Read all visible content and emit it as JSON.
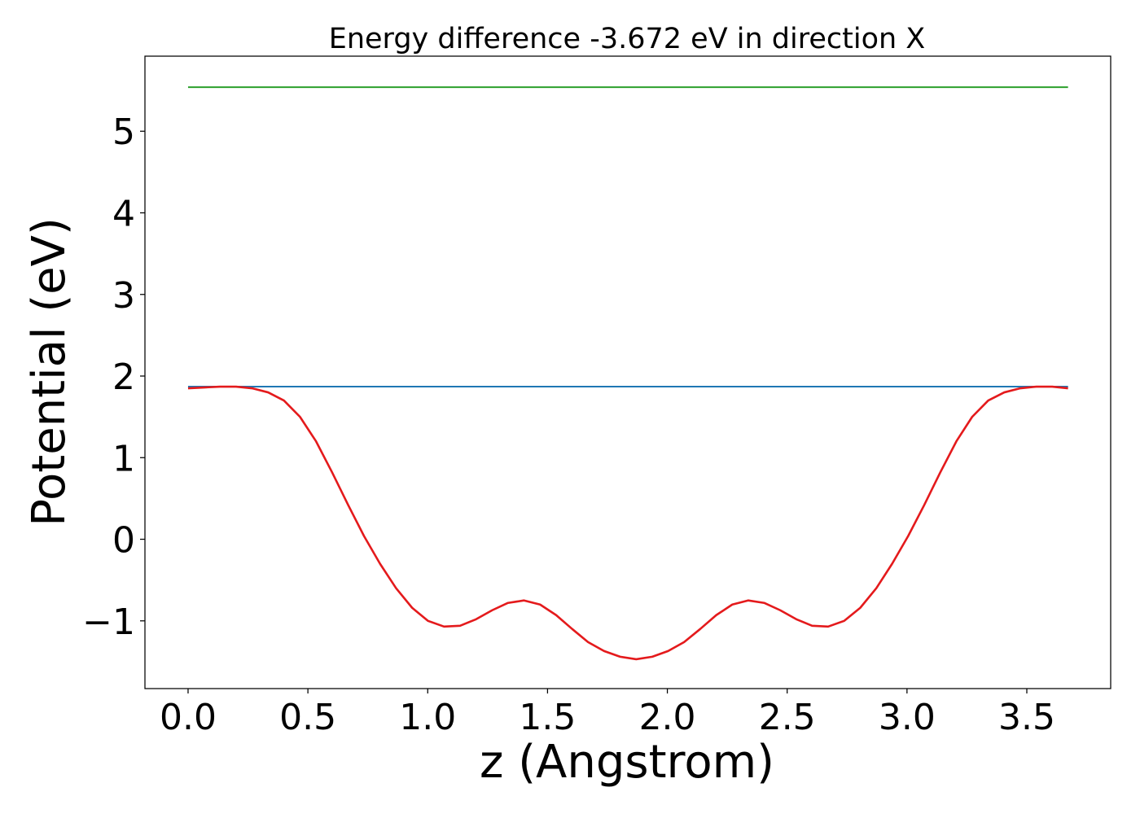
{
  "chart_data": {
    "type": "line",
    "title": "Energy difference -3.672 eV in direction X",
    "xlabel": "z (Angstrom)",
    "ylabel": "Potential (eV)",
    "xlim": [
      -0.18,
      3.85
    ],
    "ylim": [
      -1.83,
      5.92
    ],
    "xticks": [
      0.0,
      0.5,
      1.0,
      1.5,
      2.0,
      2.5,
      3.0,
      3.5
    ],
    "xtick_labels": [
      "0.0",
      "0.5",
      "1.0",
      "1.5",
      "2.0",
      "2.5",
      "3.0",
      "3.5"
    ],
    "yticks": [
      -1,
      0,
      1,
      2,
      3,
      4,
      5
    ],
    "ytick_labels": [
      "−1",
      "0",
      "1",
      "2",
      "3",
      "4",
      "5"
    ],
    "grid": false,
    "legend": "none",
    "series": [
      {
        "color": "#2ca02c",
        "x": [
          0.0,
          3.672
        ],
        "y": [
          5.54,
          5.54
        ]
      },
      {
        "color": "#1f77b4",
        "x": [
          0.0,
          3.672
        ],
        "y": [
          1.87,
          1.87
        ]
      },
      {
        "color": "#e41a1c",
        "x": [
          0.0,
          0.067,
          0.133,
          0.2,
          0.267,
          0.334,
          0.4,
          0.467,
          0.534,
          0.601,
          0.668,
          0.734,
          0.801,
          0.868,
          0.935,
          1.001,
          1.068,
          1.135,
          1.202,
          1.269,
          1.335,
          1.402,
          1.469,
          1.536,
          1.603,
          1.669,
          1.736,
          1.803,
          1.87,
          1.937,
          2.003,
          2.07,
          2.137,
          2.204,
          2.271,
          2.337,
          2.404,
          2.471,
          2.538,
          2.604,
          2.671,
          2.738,
          2.805,
          2.872,
          2.938,
          3.005,
          3.072,
          3.139,
          3.206,
          3.272,
          3.339,
          3.406,
          3.473,
          3.54,
          3.606,
          3.672
        ],
        "y": [
          1.85,
          1.86,
          1.87,
          1.87,
          1.85,
          1.8,
          1.7,
          1.5,
          1.2,
          0.82,
          0.42,
          0.04,
          -0.3,
          -0.6,
          -0.84,
          -1.0,
          -1.07,
          -1.06,
          -0.98,
          -0.87,
          -0.78,
          -0.75,
          -0.8,
          -0.93,
          -1.1,
          -1.26,
          -1.37,
          -1.44,
          -1.47,
          -1.44,
          -1.37,
          -1.26,
          -1.1,
          -0.93,
          -0.8,
          -0.75,
          -0.78,
          -0.87,
          -0.98,
          -1.06,
          -1.07,
          -1.0,
          -0.84,
          -0.6,
          -0.3,
          0.04,
          0.42,
          0.82,
          1.2,
          1.5,
          1.7,
          1.8,
          1.85,
          1.87,
          1.87,
          1.85
        ]
      }
    ]
  }
}
